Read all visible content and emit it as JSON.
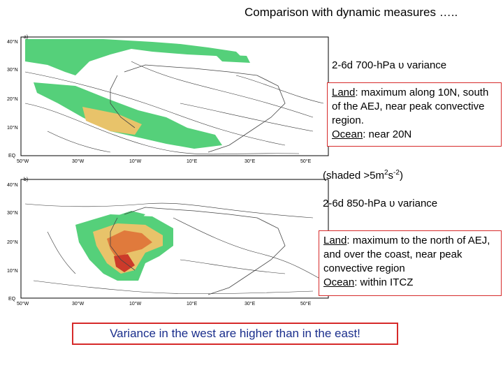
{
  "slide_title": "Comparison with dynamic measures …..",
  "map_a": {
    "panel_label": "a)",
    "lat_labels": [
      "40°N",
      "30°N",
      "20°N",
      "10°N",
      "EQ"
    ],
    "lon_labels": [
      "50°W",
      "30°W",
      "10°W",
      "10°E",
      "30°E",
      "50°E"
    ]
  },
  "map_b": {
    "panel_label": "b)",
    "lat_labels": [
      "40°N",
      "30°N",
      "20°N",
      "10°N",
      "EQ"
    ],
    "lon_labels": [
      "50°W",
      "30°W",
      "10°W",
      "10°E",
      "30°E",
      "50°E"
    ]
  },
  "caption_700": "2-6d 700-hPa υ variance",
  "box_700": {
    "land_label": "Land",
    "land_text": ": maximum along 10N, south of the AEJ, near peak convective region.",
    "ocean_label": "Ocean",
    "ocean_text": ": near 20N"
  },
  "shaded_note": {
    "prefix": "(shaded >5m",
    "sup1": "2",
    "mid": "s",
    "sup2": "-2",
    "suffix": ")"
  },
  "caption_850": "2-6d 850-hPa υ variance",
  "box_850": {
    "land_label": "Land",
    "land_text": ": maximum to the north of AEJ, and over the coast, near peak convective region",
    "ocean_label": "Ocean",
    "ocean_text": ": within ITCZ"
  },
  "conclusion": "Variance in the west are higher than in the east!",
  "colors": {
    "shade_light": "#55d07a",
    "shade_mid": "#e8c36a",
    "shade_high": "#e07a3c",
    "shade_peak": "#cc3a2a",
    "accent_border": "#d62a2a",
    "conclusion_text": "#1a2e8c"
  }
}
